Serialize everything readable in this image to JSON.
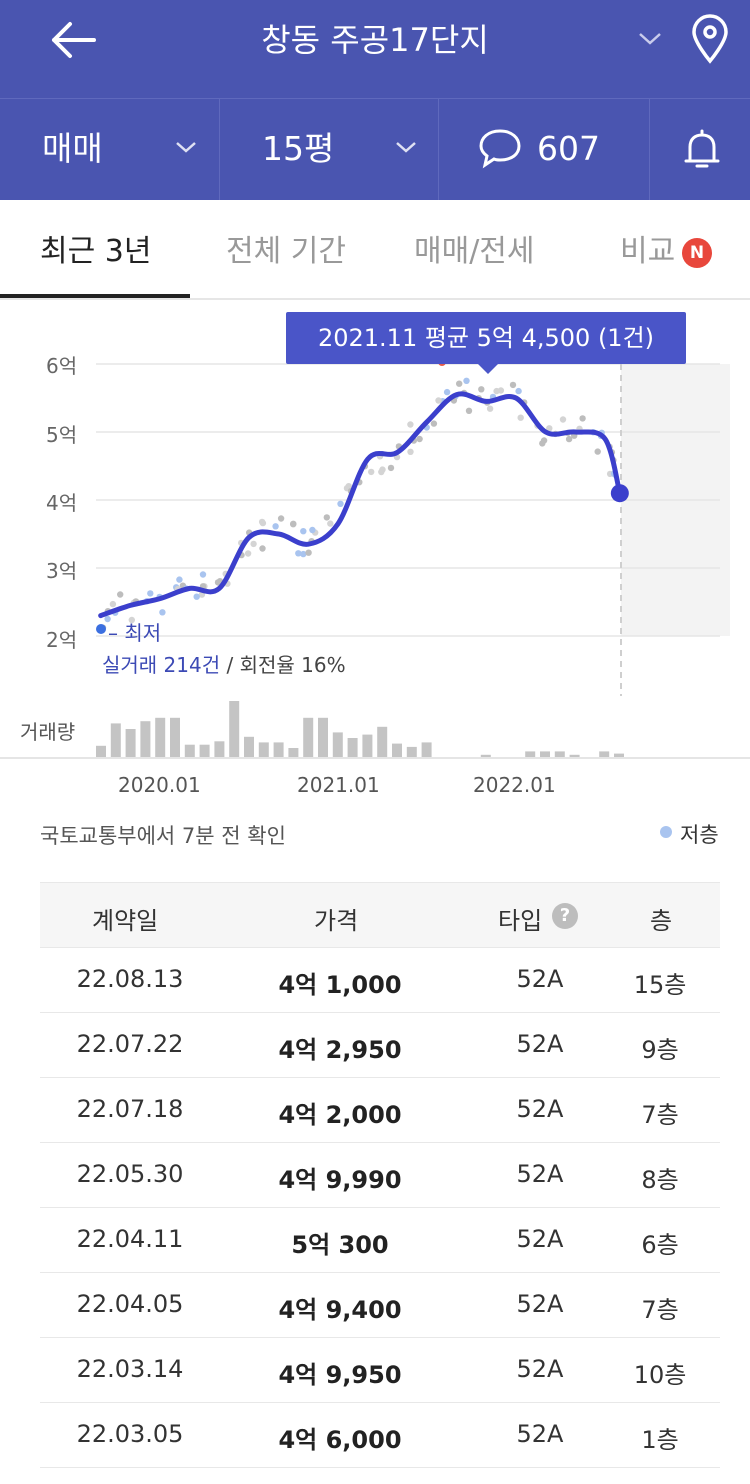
{
  "header": {
    "title": "창동 주공17단지",
    "trade_type": "매매",
    "size": "15평",
    "comment_count": "607"
  },
  "tabs": [
    {
      "label": "최근 3년"
    },
    {
      "label": "전체 기간"
    },
    {
      "label": "매매/전세"
    },
    {
      "label": "비교"
    }
  ],
  "tab_badge": "N",
  "chart": {
    "tooltip": "2021.11 평균 5억 4,500 (1건)",
    "lowest_label": "최저",
    "summary_count": "실거래 214건",
    "summary_rest": " / 회전율 16%",
    "volume_label": "거래량",
    "source": "국토교통부에서 7분 전 확인",
    "legend_low_floor": "저층"
  },
  "chart_data": {
    "type": "line",
    "title": "",
    "y_ticks": [
      "6억",
      "5억",
      "4억",
      "3억",
      "2억"
    ],
    "x_ticks": [
      "2020.01",
      "2021.01",
      "2022.01"
    ],
    "ylim": [
      2,
      6
    ],
    "y_unit": "억",
    "series": [
      {
        "x": [
          "2019.09",
          "2019.11",
          "2020.01",
          "2020.03",
          "2020.05",
          "2020.07",
          "2020.09",
          "2020.11",
          "2021.01",
          "2021.03",
          "2021.05",
          "2021.07",
          "2021.09",
          "2021.11",
          "2022.01",
          "2022.03",
          "2022.05",
          "2022.07",
          "2022.08"
        ],
        "values": [
          2.3,
          2.45,
          2.55,
          2.7,
          2.7,
          3.45,
          3.5,
          3.35,
          3.65,
          4.6,
          4.7,
          5.15,
          5.55,
          5.45,
          5.5,
          5.0,
          5.0,
          4.9,
          4.1
        ]
      }
    ],
    "volume": [
      1,
      3,
      2.5,
      3.2,
      3.5,
      3.5,
      1.1,
      1.1,
      1.4,
      5,
      1.8,
      1.3,
      1.3,
      0.8,
      3.5,
      3.5,
      2.2,
      1.7,
      2.0,
      2.7,
      1.2,
      0.9,
      1.3,
      0,
      0,
      0,
      0.2,
      0,
      0,
      0.5,
      0.5,
      0.5,
      0.2,
      0,
      0.5,
      0.3
    ]
  },
  "table": {
    "headers": {
      "date": "계약일",
      "price": "가격",
      "type": "타입",
      "floor": "층"
    },
    "help_icon": "?",
    "rows": [
      {
        "date": "22.08.13",
        "price": "4억 1,000",
        "type": "52A",
        "floor": "15층"
      },
      {
        "date": "22.07.22",
        "price": "4억 2,950",
        "type": "52A",
        "floor": "9층"
      },
      {
        "date": "22.07.18",
        "price": "4억 2,000",
        "type": "52A",
        "floor": "7층"
      },
      {
        "date": "22.05.30",
        "price": "4억 9,990",
        "type": "52A",
        "floor": "8층"
      },
      {
        "date": "22.04.11",
        "price": "5억 300",
        "type": "52A",
        "floor": "6층"
      },
      {
        "date": "22.04.05",
        "price": "4억 9,400",
        "type": "52A",
        "floor": "7층"
      },
      {
        "date": "22.03.14",
        "price": "4억 9,950",
        "type": "52A",
        "floor": "10층"
      },
      {
        "date": "22.03.05",
        "price": "4억 6,000",
        "type": "52A",
        "floor": "1층"
      }
    ]
  },
  "colors": {
    "brand": "#4a55b0",
    "line": "#3b3fcc",
    "badge": "#e8473c"
  }
}
